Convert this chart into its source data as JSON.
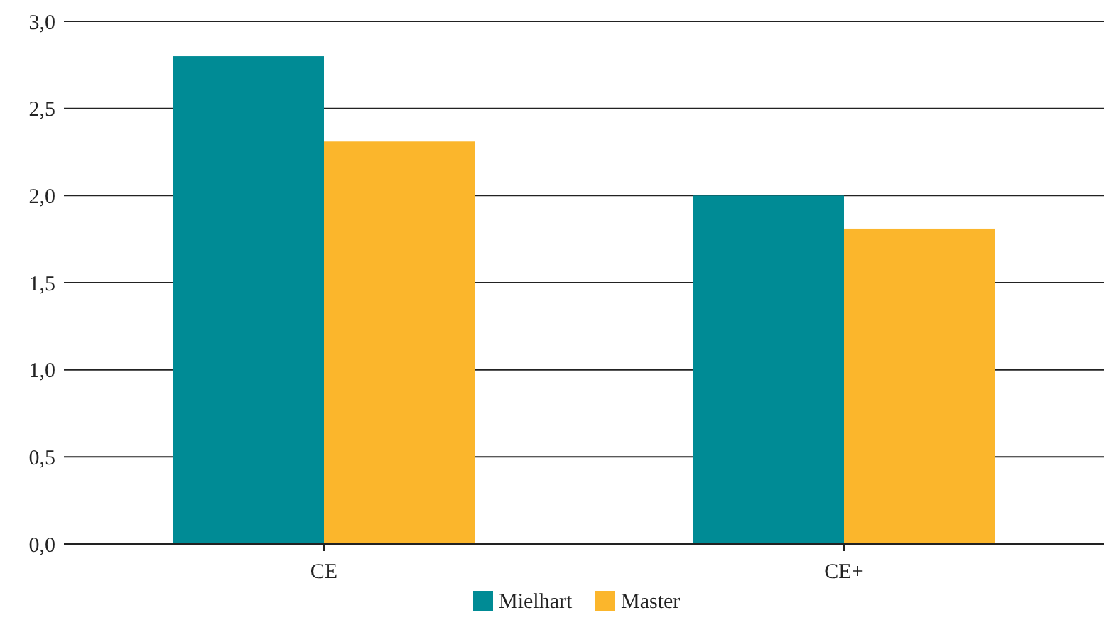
{
  "chart_data": {
    "type": "bar",
    "categories": [
      "CE",
      "CE+"
    ],
    "series": [
      {
        "name": "Mielhart",
        "color": "#008b95",
        "values": [
          2.8,
          2.0
        ]
      },
      {
        "name": "Master",
        "color": "#fbb62c",
        "values": [
          2.31,
          1.81
        ]
      }
    ],
    "ylim": [
      0,
      3
    ],
    "yticks": [
      {
        "value": 0,
        "label": "0,0"
      },
      {
        "value": 0.5,
        "label": "0,5"
      },
      {
        "value": 1,
        "label": "1,0"
      },
      {
        "value": 1.5,
        "label": "1,5"
      },
      {
        "value": 2,
        "label": "2,0"
      },
      {
        "value": 2.5,
        "label": "2,5"
      },
      {
        "value": 3,
        "label": "3,0"
      }
    ],
    "grid": "y",
    "legend": "bottom"
  }
}
